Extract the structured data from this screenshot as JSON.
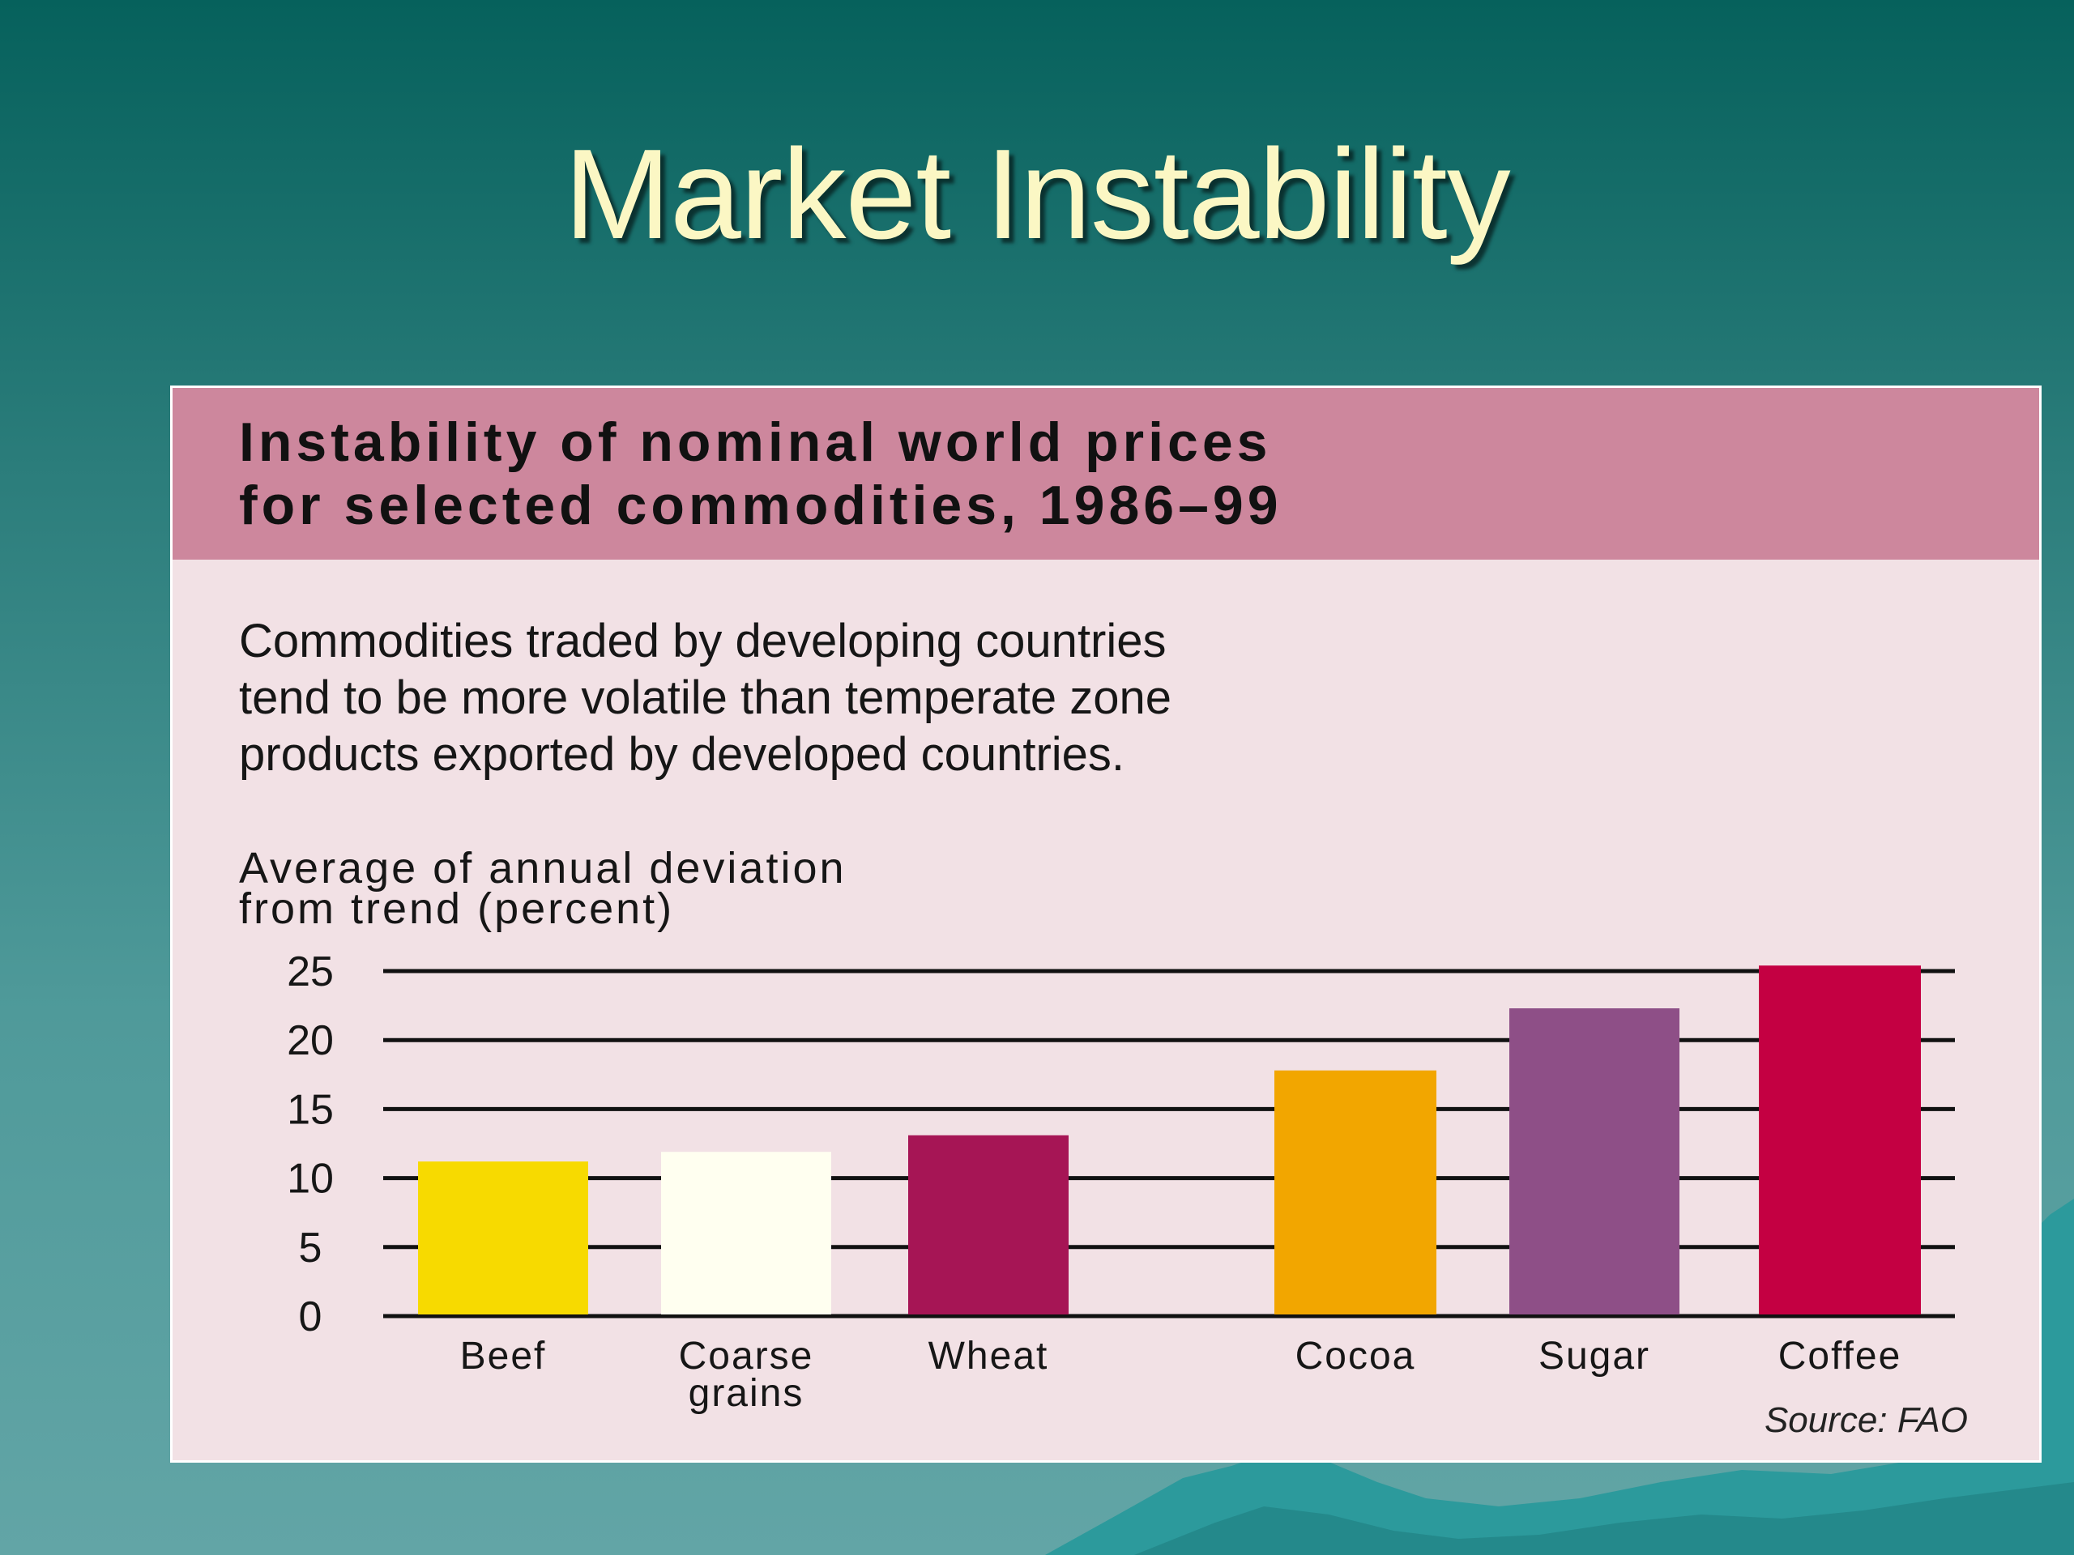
{
  "slide": {
    "title": "Market Instability"
  },
  "chart_data": {
    "type": "bar",
    "title": "Instability of nominal world prices\nfor selected commodities, 1986–99",
    "subtitle": "Commodities traded by developing countries\ntend to be more volatile than temperate zone\nproducts exported by developed countries.",
    "ylabel": "Average of annual deviation\nfrom trend (percent)",
    "xlabel": "",
    "categories": [
      "Beef",
      "Coarse grains",
      "Wheat",
      "Cocoa",
      "Sugar",
      "Coffee"
    ],
    "values": [
      11.2,
      11.9,
      13.1,
      17.8,
      22.3,
      25.4
    ],
    "colors": [
      "#f7da00",
      "#fffff0",
      "#a61555",
      "#f2a600",
      "#8e4f87",
      "#c40042"
    ],
    "yticks": [
      0,
      5,
      10,
      15,
      20,
      25
    ],
    "ylim": [
      0,
      25
    ],
    "grid": true,
    "source": "Source: FAO"
  }
}
